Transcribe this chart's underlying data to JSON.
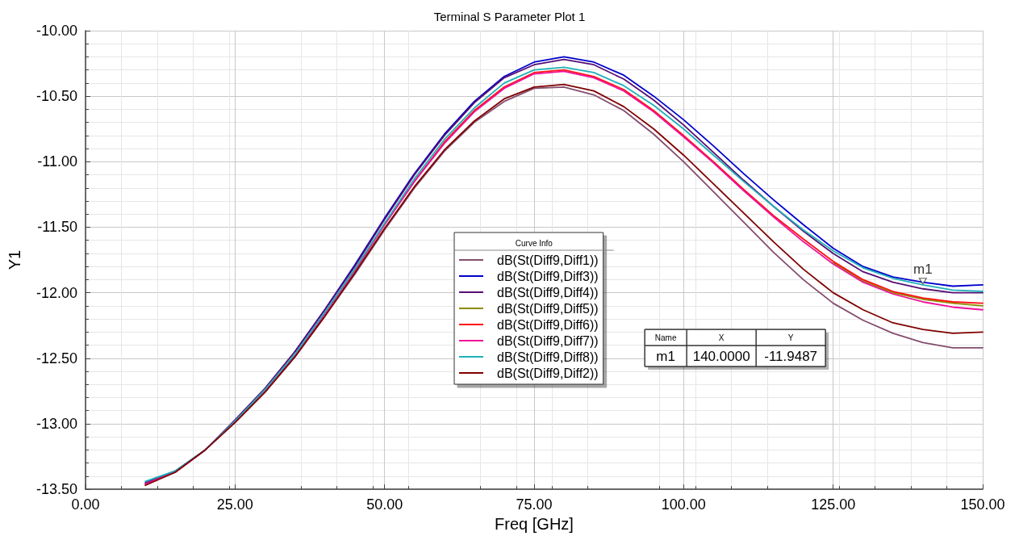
{
  "chart_data": {
    "type": "line",
    "title": "Terminal S Parameter Plot 1",
    "xlabel": "Freq [GHz]",
    "ylabel": "Y1",
    "legend_title": "Curve Info",
    "legend": "center",
    "grid": true,
    "marker": "none",
    "line_style": "solid",
    "x": [
      10,
      15,
      20,
      25,
      30,
      35,
      40,
      45,
      50,
      55,
      60,
      65,
      70,
      75,
      80,
      85,
      90,
      95,
      100,
      105,
      110,
      115,
      120,
      125,
      130,
      135,
      140,
      145,
      150
    ],
    "xlim": [
      0,
      150
    ],
    "xticks": [
      {
        "value": 0,
        "label": "0.00"
      },
      {
        "value": 25,
        "label": "25.00"
      },
      {
        "value": 50,
        "label": "50.00"
      },
      {
        "value": 75,
        "label": "75.00"
      },
      {
        "value": 100,
        "label": "100.00"
      },
      {
        "value": 125,
        "label": "125.00"
      },
      {
        "value": 150,
        "label": "150.00"
      }
    ],
    "ylim": [
      -13.5,
      -10
    ],
    "yticks": [
      {
        "value": -13.5,
        "label": "-13.50"
      },
      {
        "value": -13,
        "label": "-13.00"
      },
      {
        "value": -12.5,
        "label": "-12.50"
      },
      {
        "value": -12,
        "label": "-12.00"
      },
      {
        "value": -11.5,
        "label": "-11.50"
      },
      {
        "value": -11,
        "label": "-11.00"
      },
      {
        "value": -10.5,
        "label": "-10.50"
      },
      {
        "value": -10,
        "label": "-10.00"
      }
    ],
    "series": [
      {
        "name": "dB(St(Diff9,Diff1))",
        "color": "#844d6e",
        "values": [
          -13.46,
          -13.37,
          -13.2,
          -12.99,
          -12.76,
          -12.49,
          -12.18,
          -11.86,
          -11.52,
          -11.2,
          -10.92,
          -10.7,
          -10.54,
          -10.44,
          -10.43,
          -10.49,
          -10.61,
          -10.79,
          -11.0,
          -11.23,
          -11.46,
          -11.69,
          -11.9,
          -12.08,
          -12.21,
          -12.31,
          -12.38,
          -12.42,
          -12.42
        ]
      },
      {
        "name": "dB(St(Diff9,Diff3))",
        "color": "#0000cc",
        "values": [
          null,
          null,
          null,
          null,
          null,
          -12.45,
          -12.13,
          -11.79,
          -11.43,
          -11.09,
          -10.79,
          -10.54,
          -10.35,
          -10.24,
          -10.2,
          -10.24,
          -10.34,
          -10.5,
          -10.68,
          -10.88,
          -11.09,
          -11.29,
          -11.48,
          -11.66,
          -11.8,
          -11.88,
          -11.92,
          -11.95,
          -11.94
        ]
      },
      {
        "name": "dB(St(Diff9,Diff4))",
        "color": "#560e74",
        "values": [
          -13.45,
          -13.36,
          -13.2,
          -12.97,
          -12.73,
          -12.45,
          -12.13,
          -11.8,
          -11.44,
          -11.1,
          -10.8,
          -10.55,
          -10.36,
          -10.26,
          -10.22,
          -10.26,
          -10.37,
          -10.53,
          -10.72,
          -10.93,
          -11.14,
          -11.34,
          -11.53,
          -11.7,
          -11.84,
          -11.92,
          -11.97,
          -12.0,
          -12.0
        ]
      },
      {
        "name": "dB(St(Diff9,Diff5))",
        "color": "#8c8c00",
        "values": [
          null,
          null,
          null,
          null,
          null,
          null,
          null,
          null,
          null,
          null,
          null,
          null,
          null,
          null,
          null,
          null,
          null,
          null,
          null,
          null,
          null,
          null,
          null,
          -11.77,
          -11.91,
          -12.0,
          -12.05,
          -12.08,
          -12.1
        ]
      },
      {
        "name": "dB(St(Diff9,Diff6))",
        "color": "#ff1010",
        "values": [
          null,
          null,
          null,
          null,
          null,
          null,
          null,
          -11.83,
          -11.48,
          -11.15,
          -10.85,
          -10.61,
          -10.43,
          -10.32,
          -10.3,
          -10.35,
          -10.45,
          -10.61,
          -10.8,
          -11.0,
          -11.21,
          -11.41,
          -11.59,
          -11.76,
          -11.9,
          -11.99,
          -12.04,
          -12.07,
          -12.08
        ]
      },
      {
        "name": "dB(St(Diff9,Diff7))",
        "color": "#ee1199",
        "values": [
          -13.46,
          -13.37,
          -13.2,
          -12.98,
          -12.75,
          -12.48,
          -12.16,
          -11.83,
          -11.48,
          -11.15,
          -10.86,
          -10.62,
          -10.44,
          -10.33,
          -10.31,
          -10.36,
          -10.46,
          -10.62,
          -10.81,
          -11.01,
          -11.22,
          -11.42,
          -11.61,
          -11.78,
          -11.92,
          -12.01,
          -12.07,
          -12.11,
          -12.13
        ]
      },
      {
        "name": "dB(St(Diff9,Diff8))",
        "color": "#20b0b8",
        "values": [
          -13.44,
          -13.36,
          -13.2,
          -12.98,
          -12.74,
          -12.47,
          -12.15,
          -11.82,
          -11.47,
          -11.13,
          -10.83,
          -10.59,
          -10.4,
          -10.3,
          -10.28,
          -10.32,
          -10.42,
          -10.57,
          -10.75,
          -10.95,
          -11.15,
          -11.34,
          -11.52,
          -11.68,
          -11.81,
          -11.89,
          -11.94,
          -11.98,
          -11.99
        ]
      },
      {
        "name": "dB(St(Diff9,Diff2))",
        "color": "#800000",
        "values": [
          -13.47,
          -13.37,
          -13.2,
          -12.99,
          -12.76,
          -12.49,
          -12.18,
          -11.85,
          -11.51,
          -11.19,
          -10.91,
          -10.69,
          -10.52,
          -10.43,
          -10.41,
          -10.46,
          -10.58,
          -10.75,
          -10.95,
          -11.17,
          -11.39,
          -11.61,
          -11.82,
          -12.0,
          -12.13,
          -12.23,
          -12.28,
          -12.31,
          -12.3
        ]
      }
    ],
    "annotations": [
      {
        "text": "m1",
        "x": 140,
        "y": -11.9487
      },
      "Name",
      "X",
      "Y",
      "m1",
      "140.0000",
      "-11.9487"
    ]
  }
}
